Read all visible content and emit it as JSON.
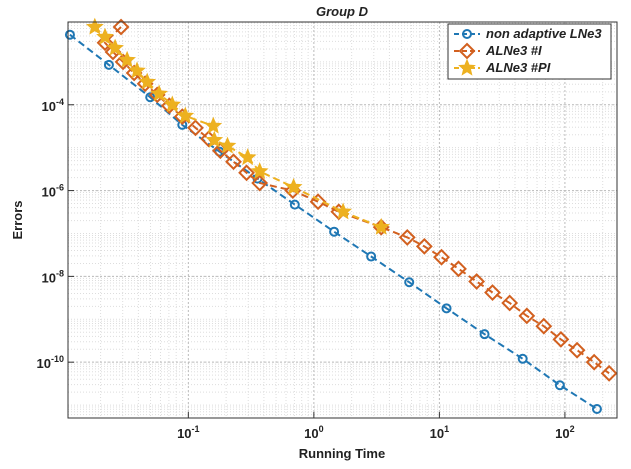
{
  "chart_data": {
    "type": "line",
    "title": "Group D",
    "xlabel": "Running Time",
    "ylabel": "Errors",
    "xscale": "log",
    "yscale": "log",
    "grid": true,
    "legend": "upper right",
    "xlim": [
      0.011,
      260
    ],
    "ylim": [
      5e-12,
      0.0085
    ],
    "xticks": [
      {
        "value": 0.1,
        "label": "10^-1"
      },
      {
        "value": 1,
        "label": "10^0"
      },
      {
        "value": 10,
        "label": "10^1"
      },
      {
        "value": 100,
        "label": "10^2"
      }
    ],
    "yticks": [
      {
        "value": 1e-10,
        "label": "10^-10"
      },
      {
        "value": 1e-08,
        "label": "10^-8"
      },
      {
        "value": 1e-06,
        "label": "10^-6"
      },
      {
        "value": 0.0001,
        "label": "10^-4"
      }
    ],
    "series": [
      {
        "name": "non adaptive LNe3",
        "color": "#1f77b4",
        "marker": "circle",
        "x": [
          0.0114,
          0.0233,
          0.0497,
          0.0895,
          0.177,
          0.356,
          0.705,
          1.45,
          2.86,
          5.75,
          11.4,
          22.9,
          46.1,
          91.2,
          180
        ],
        "values": [
          0.0043,
          0.00085,
          0.00015,
          3.4e-05,
          8.1e-06,
          1.9e-06,
          4.7e-07,
          1.1e-07,
          2.9e-08,
          7.3e-09,
          1.8e-09,
          4.5e-10,
          1.2e-10,
          2.9e-11,
          8.1e-12
        ]
      },
      {
        "name": "ALNe3 #I",
        "color": "#d2601f",
        "marker": "diamond",
        "x": [
          0.0291,
          0.0217,
          0.0251,
          0.0302,
          0.037,
          0.0453,
          0.0565,
          0.0705,
          0.0895,
          0.114,
          0.145,
          0.18,
          0.229,
          0.291,
          0.37,
          0.68,
          1.08,
          1.58,
          3.44,
          5.55,
          7.59,
          10.4,
          14.2,
          19.8,
          26.5,
          36.3,
          49.7,
          67.9,
          92.9,
          125,
          171,
          225
        ],
        "values": [
          0.0065,
          0.0028,
          0.0017,
          0.001,
          0.00055,
          0.00031,
          0.00017,
          9.5e-05,
          5.3e-05,
          2.9e-05,
          1.6e-05,
          8.5e-06,
          4.7e-06,
          2.6e-06,
          1.5e-06,
          1e-06,
          5.5e-07,
          3.2e-07,
          1.4e-07,
          8.1e-08,
          5e-08,
          2.8e-08,
          1.5e-08,
          7.6e-09,
          4.2e-09,
          2.4e-09,
          1.2e-09,
          6.9e-10,
          3.4e-10,
          1.9e-10,
          1e-10,
          5.5e-11
        ]
      },
      {
        "name": "ALNe3 #PI",
        "color": "#edb120",
        "marker": "star",
        "x": [
          0.018,
          0.0217,
          0.0261,
          0.0325,
          0.039,
          0.047,
          0.0585,
          0.0745,
          0.0946,
          0.158,
          0.161,
          0.205,
          0.297,
          0.37,
          0.69,
          1.71,
          3.44
        ],
        "values": [
          0.0065,
          0.0038,
          0.0021,
          0.0011,
          0.00062,
          0.00034,
          0.00018,
          0.0001,
          5.5e-05,
          3.2e-05,
          1.5e-05,
          1.1e-05,
          5.9e-06,
          2.8e-06,
          1.2e-06,
          3.2e-07,
          1.4e-07
        ]
      }
    ]
  }
}
